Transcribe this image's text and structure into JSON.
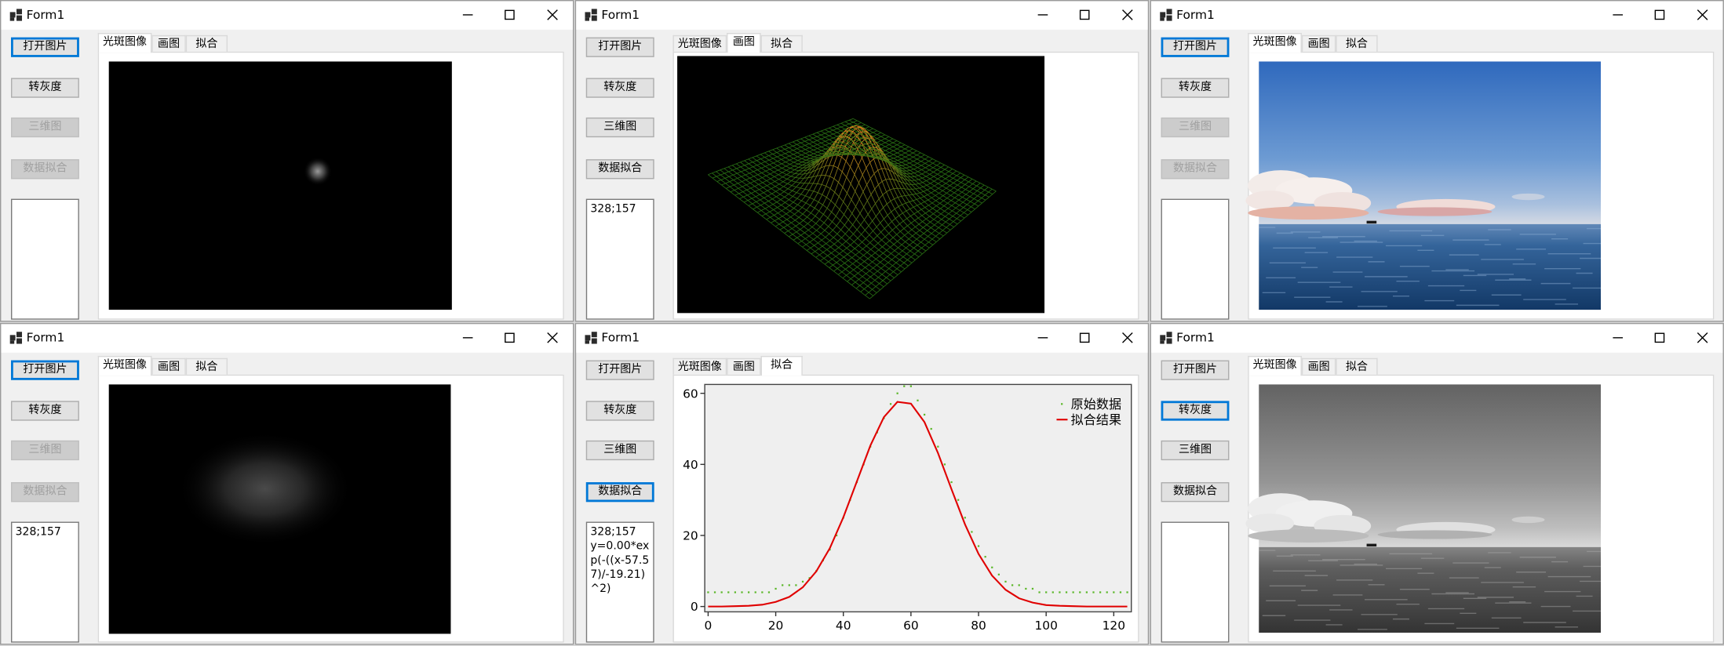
{
  "windows": [
    {
      "title": "Form1",
      "buttons": [
        {
          "label": "打开图片",
          "state": "focused"
        },
        {
          "label": "转灰度",
          "state": "normal"
        },
        {
          "label": "三维图",
          "state": "disabled"
        },
        {
          "label": "数据拟合",
          "state": "disabled"
        }
      ],
      "tabs": [
        "光斑图像",
        "画图",
        "拟合"
      ],
      "selected_tab": 0,
      "textbox": []
    },
    {
      "title": "Form1",
      "buttons": [
        {
          "label": "打开图片",
          "state": "normal"
        },
        {
          "label": "转灰度",
          "state": "normal"
        },
        {
          "label": "三维图",
          "state": "normal"
        },
        {
          "label": "数据拟合",
          "state": "normal"
        }
      ],
      "tabs": [
        "光斑图像",
        "画图",
        "拟合"
      ],
      "selected_tab": 1,
      "textbox": [
        "328;157"
      ]
    },
    {
      "title": "Form1",
      "buttons": [
        {
          "label": "打开图片",
          "state": "focused"
        },
        {
          "label": "转灰度",
          "state": "normal"
        },
        {
          "label": "三维图",
          "state": "disabled"
        },
        {
          "label": "数据拟合",
          "state": "disabled"
        }
      ],
      "tabs": [
        "光斑图像",
        "画图",
        "拟合"
      ],
      "selected_tab": 0,
      "textbox": []
    },
    {
      "title": "Form1",
      "buttons": [
        {
          "label": "打开图片",
          "state": "focused"
        },
        {
          "label": "转灰度",
          "state": "normal"
        },
        {
          "label": "三维图",
          "state": "disabled"
        },
        {
          "label": "数据拟合",
          "state": "disabled"
        }
      ],
      "tabs": [
        "光斑图像",
        "画图",
        "拟合"
      ],
      "selected_tab": 0,
      "textbox": [
        "328;157"
      ]
    },
    {
      "title": "Form1",
      "buttons": [
        {
          "label": "打开图片",
          "state": "normal"
        },
        {
          "label": "转灰度",
          "state": "normal"
        },
        {
          "label": "三维图",
          "state": "normal"
        },
        {
          "label": "数据拟合",
          "state": "focused"
        }
      ],
      "tabs": [
        "光斑图像",
        "画图",
        "拟合"
      ],
      "selected_tab": 2,
      "textbox": [
        "328;157",
        "y=0.00*exp(-((x-57.57)/-19.21)^2)"
      ]
    },
    {
      "title": "Form1",
      "buttons": [
        {
          "label": "打开图片",
          "state": "normal"
        },
        {
          "label": "转灰度",
          "state": "focused"
        },
        {
          "label": "三维图",
          "state": "normal"
        },
        {
          "label": "数据拟合",
          "state": "normal"
        }
      ],
      "tabs": [
        "光斑图像",
        "画图",
        "拟合"
      ],
      "selected_tab": 0,
      "textbox": []
    }
  ],
  "chart_data": {
    "type": "line",
    "xlim": [
      -1,
      125.2
    ],
    "ylim": [
      -1.5,
      62.5
    ],
    "xticks": [
      0,
      20,
      40,
      60,
      80,
      100,
      120
    ],
    "yticks": [
      0,
      20,
      40,
      60
    ],
    "legend": "upper right",
    "series": [
      {
        "name": "原始数据",
        "color": "#5cb82a",
        "mode": "markers",
        "x": [
          0,
          2,
          4,
          6,
          8,
          10,
          12,
          14,
          16,
          18,
          20,
          22,
          24,
          26,
          28,
          30,
          32,
          34,
          36,
          38,
          40,
          42,
          44,
          46,
          48,
          50,
          52,
          54,
          56,
          58,
          60,
          62,
          64,
          66,
          68,
          70,
          72,
          74,
          76,
          78,
          80,
          82,
          84,
          86,
          88,
          90,
          92,
          94,
          96,
          98,
          100,
          102,
          104,
          106,
          108,
          110,
          112,
          114,
          116,
          118,
          120,
          122,
          124
        ],
        "values": [
          4,
          4,
          4,
          4,
          4,
          4,
          4,
          4,
          4,
          4,
          5,
          6,
          6,
          6,
          7,
          8,
          10,
          13,
          16,
          20,
          25,
          30,
          35,
          40,
          45,
          49,
          53,
          57,
          60,
          62,
          62,
          58,
          54,
          50,
          45,
          40,
          35,
          30,
          25,
          21,
          17,
          14,
          11,
          9,
          7,
          6,
          6,
          5,
          5,
          4,
          4,
          4,
          4,
          4,
          4,
          4,
          4,
          4,
          4,
          4,
          4,
          4,
          4
        ]
      },
      {
        "name": "拟合结果",
        "color": "#e00000",
        "mode": "lines",
        "x": [
          0,
          4,
          8,
          12,
          16,
          20,
          24,
          28,
          32,
          36,
          40,
          44,
          48,
          52,
          56,
          60,
          64,
          68,
          72,
          76,
          80,
          84,
          88,
          92,
          96,
          100,
          104,
          108,
          112,
          116,
          120,
          124
        ],
        "values": [
          0,
          0,
          0.1,
          0.2,
          0.5,
          1.3,
          2.7,
          5.4,
          9.9,
          16.4,
          25.1,
          35.2,
          45.3,
          53.3,
          57.6,
          57.1,
          51.9,
          43.2,
          33,
          23.1,
          14.8,
          8.7,
          4.7,
          2.3,
          1.1,
          0.4,
          0.2,
          0.1,
          0,
          0,
          0,
          0
        ]
      }
    ]
  }
}
